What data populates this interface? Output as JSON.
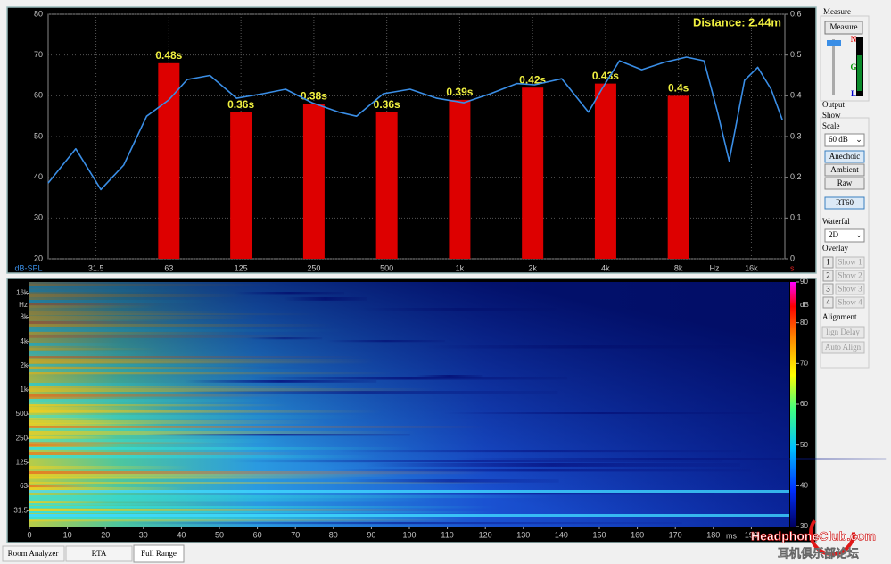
{
  "top_chart": {
    "type": "bar-line",
    "annotation": "Distance: 2.44m",
    "y_label": "dB-SPL",
    "x_unit": "Hz",
    "y2_unit": "s",
    "xscale": "log",
    "xlim": [
      20,
      22000
    ],
    "xticks": [
      31.5,
      63,
      125,
      250,
      500,
      {
        "value": 1000,
        "label": "1k"
      },
      {
        "value": 2000,
        "label": "2k"
      },
      {
        "value": 4000,
        "label": "4k"
      },
      {
        "value": 8000,
        "label": "8k"
      },
      {
        "value": 16000,
        "label": "16k"
      }
    ],
    "ylim": [
      20,
      80
    ],
    "yticks": [
      20,
      30,
      40,
      50,
      60,
      70,
      80
    ],
    "y2lim": [
      0,
      0.6
    ],
    "y2ticks": [
      0,
      0.1,
      0.2,
      0.3,
      0.4,
      0.5,
      0.6
    ],
    "grid": true,
    "bars": {
      "axis": "y2",
      "color": "#dd0000",
      "x": [
        63,
        125,
        250,
        500,
        1000,
        2000,
        4000,
        8000
      ],
      "values": [
        0.48,
        0.36,
        0.38,
        0.36,
        0.39,
        0.42,
        0.43,
        0.4
      ],
      "value_labels": [
        "0.48s",
        "0.36s",
        "0.38s",
        "0.36s",
        "0.39s",
        "0.42s",
        "0.43s",
        "0.4s"
      ]
    },
    "line": {
      "color": "#3a8ee6",
      "x": [
        20,
        26,
        33,
        41,
        51,
        63,
        75,
        93,
        120,
        154,
        191,
        246,
        317,
        375,
        484,
        624,
        804,
        1040,
        1340,
        1720,
        2040,
        2640,
        3400,
        3860,
        4570,
        5640,
        6980,
        8630,
        10200,
        11600,
        12960,
        15000,
        17000,
        19300,
        21500
      ],
      "values": [
        38.6,
        47,
        37,
        43,
        55,
        59,
        64,
        65,
        59.4,
        60.5,
        61.6,
        58.3,
        56,
        55,
        60.5,
        61.6,
        59.4,
        58.3,
        60.5,
        63,
        62.7,
        64.2,
        56,
        61.6,
        68.6,
        66.4,
        68.2,
        69.5,
        68.6,
        56,
        44,
        63.8,
        67,
        61.6,
        54
      ]
    }
  },
  "spectrogram": {
    "x_unit": "ms",
    "xlim": [
      0,
      200
    ],
    "xticks": [
      0,
      10,
      20,
      30,
      40,
      50,
      60,
      70,
      80,
      90,
      100,
      110,
      120,
      130,
      140,
      150,
      160,
      170,
      180,
      190
    ],
    "y_unit": "Hz",
    "yscale": "log",
    "ylim": [
      20,
      22000
    ],
    "yticks": [
      31.5,
      63,
      125,
      250,
      500,
      {
        "value": 1000,
        "label": "1k"
      },
      {
        "value": 2000,
        "label": "2k"
      },
      {
        "value": 4000,
        "label": "4k"
      },
      {
        "value": 8000,
        "label": "8k"
      },
      {
        "value": 16000,
        "label": "16k"
      }
    ],
    "colorbar": {
      "unit": "dB",
      "lim": [
        30,
        90
      ],
      "ticks": [
        30,
        40,
        50,
        60,
        70,
        80,
        90
      ]
    }
  },
  "sidebar": {
    "measure_group": "Measure",
    "measure_button": "Measure",
    "meter_labels": [
      "N",
      "G",
      "L"
    ],
    "output_label": "Output",
    "show_group": "Show",
    "scale_label": "Scale",
    "scale_value": "60 dB",
    "mode_buttons": [
      "Anechoic",
      "Ambient",
      "Raw"
    ],
    "rt60_button": "RT60",
    "waterfall_label": "Waterfal",
    "waterfall_value": "2D",
    "overlay_label": "Overlay",
    "overlays": [
      {
        "number": "1",
        "button": "Show 1"
      },
      {
        "number": "2",
        "button": "Show 2"
      },
      {
        "number": "3",
        "button": "Show 3"
      },
      {
        "number": "4",
        "button": "Show 4"
      }
    ],
    "alignment_label": "Alignment",
    "align_buttons": [
      "lign Delay",
      "Auto Align"
    ]
  },
  "tabs": [
    "Room Analyzer",
    "RTA",
    "Full Range"
  ],
  "watermark": {
    "logo": "HeadphoneClub.com",
    "caption": "耳机俱乐部论坛"
  }
}
